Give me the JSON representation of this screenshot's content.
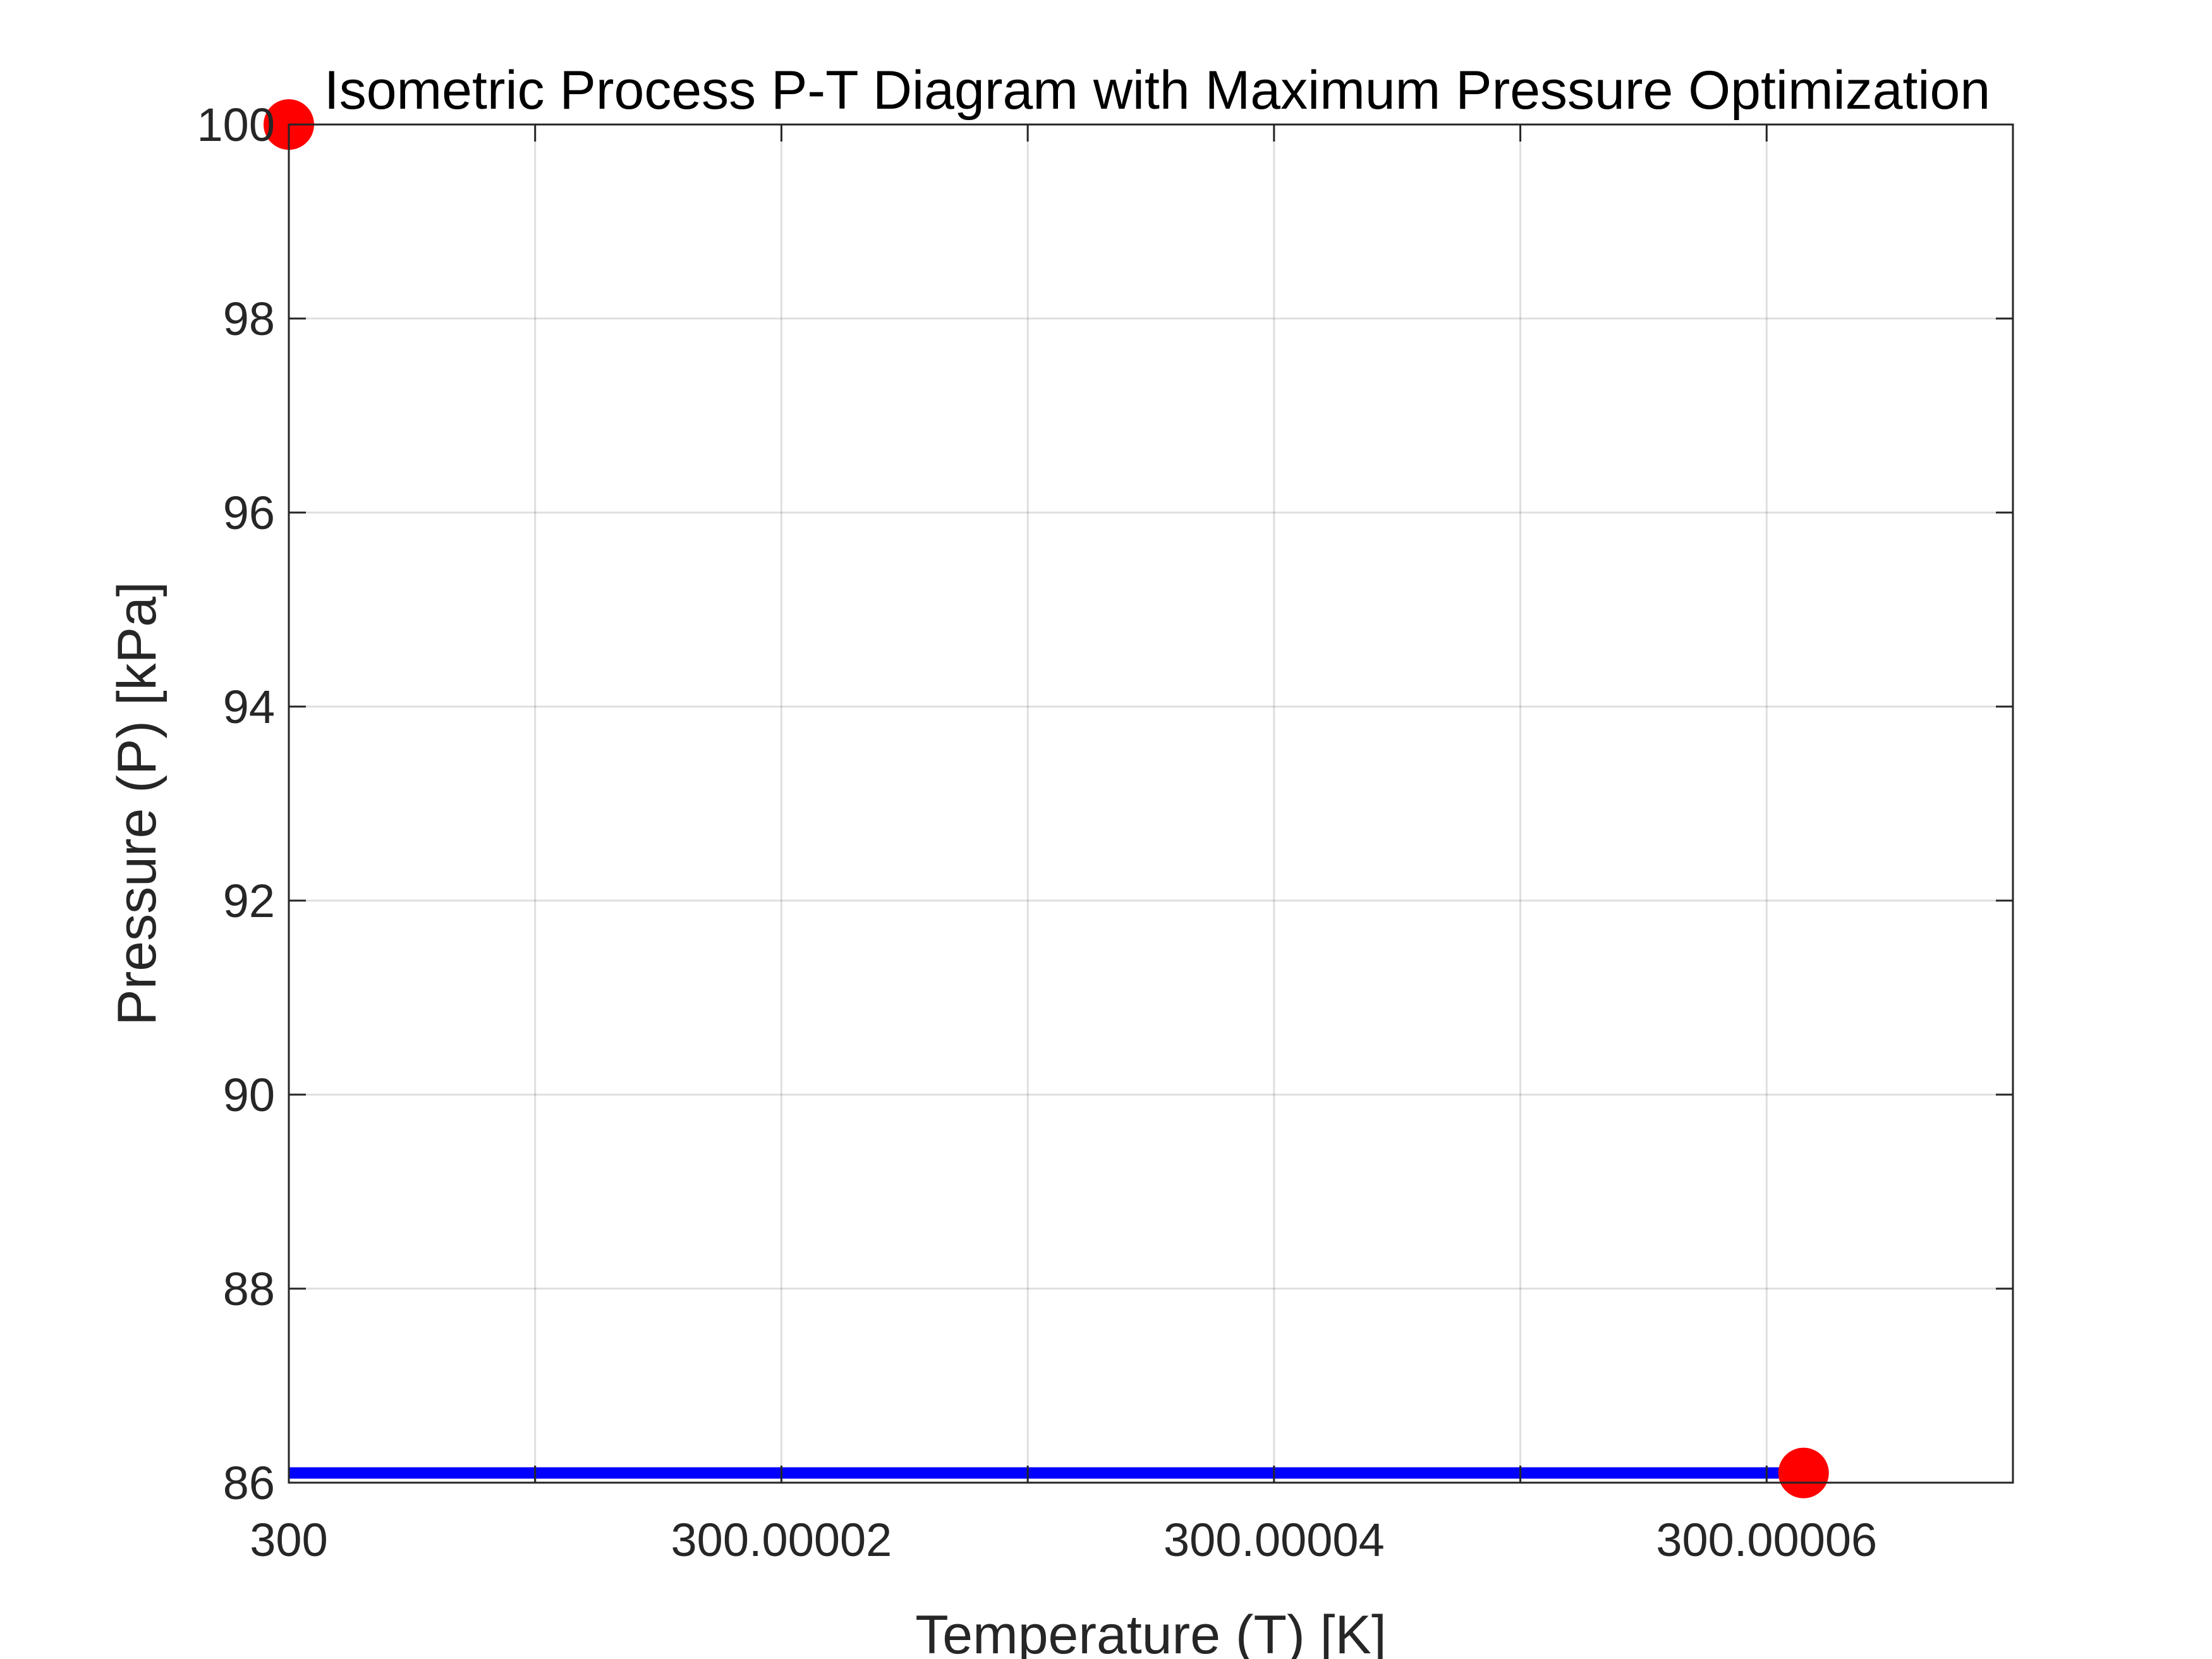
{
  "chart_data": {
    "type": "line",
    "title": "Isometric Process P-T Diagram with Maximum Pressure Optimization",
    "xlabel": "Temperature (T) [K]",
    "ylabel": "Pressure (P) [kPa]",
    "xlim": [
      300.0,
      300.00007
    ],
    "ylim": [
      86,
      100
    ],
    "grid": true,
    "x_ticks": [
      300.0,
      300.00002,
      300.00004,
      300.00006
    ],
    "x_tick_labels": [
      "300",
      "300.00002",
      "300.00004",
      "300.00006"
    ],
    "y_ticks": [
      86,
      88,
      90,
      92,
      94,
      96,
      98,
      100
    ],
    "y_tick_labels": [
      "86",
      "88",
      "90",
      "92",
      "94",
      "96",
      "98",
      "100"
    ],
    "minor_x_grid": [
      300.00001,
      300.00003,
      300.00005
    ],
    "series": [
      {
        "style": "line",
        "color": "#0000ff",
        "x": [
          300.0,
          300.0000615
        ],
        "y": [
          86.1,
          86.1
        ]
      },
      {
        "style": "markers",
        "color": "#ff0000",
        "x": [
          300.0,
          300.0000615
        ],
        "y": [
          100,
          86.1
        ]
      }
    ]
  }
}
